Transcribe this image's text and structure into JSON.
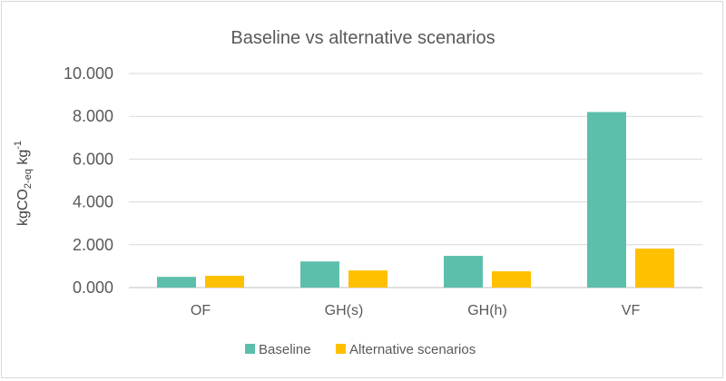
{
  "chart_data": {
    "type": "bar",
    "title": "Baseline vs alternative scenarios",
    "ylabel": {
      "main": "kgCO",
      "sub": "2-eq",
      "unit": " kg",
      "sup": "-1"
    },
    "xlabel": "",
    "categories": [
      "OF",
      "GH(s)",
      "GH(h)",
      "VF"
    ],
    "series": [
      {
        "name": "Baseline",
        "color": "#5cbfab",
        "values": [
          0.5,
          1.22,
          1.48,
          8.2
        ]
      },
      {
        "name": "Alternative scenarios",
        "color": "#ffc000",
        "values": [
          0.55,
          0.8,
          0.76,
          1.82
        ]
      }
    ],
    "ylim": [
      0,
      10
    ],
    "yticks": [
      0,
      2,
      4,
      6,
      8,
      10
    ],
    "ytick_labels": [
      "0.000",
      "2.000",
      "4.000",
      "6.000",
      "8.000",
      "10.000"
    ],
    "grid": true,
    "legend_position": "bottom"
  }
}
